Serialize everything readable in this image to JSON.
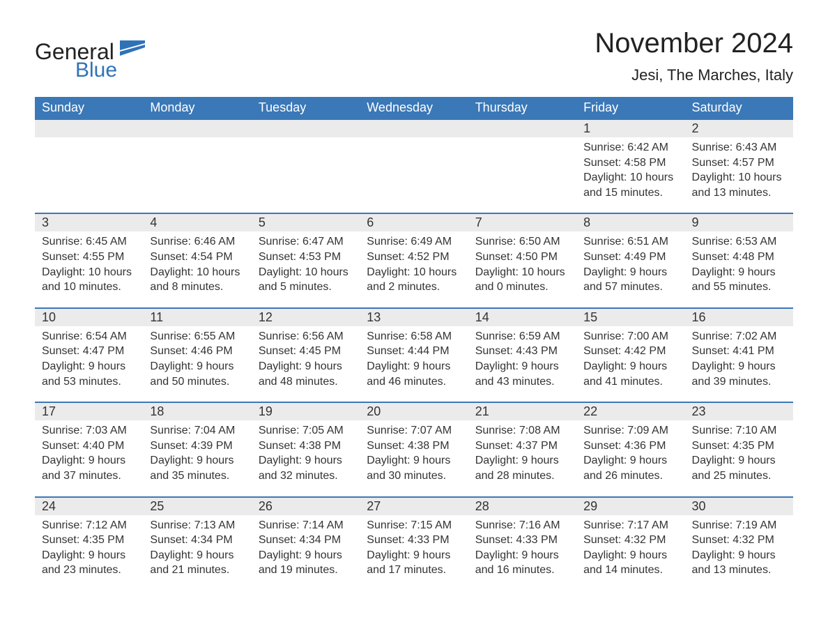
{
  "logo": {
    "general": "General",
    "blue": "Blue"
  },
  "title": "November 2024",
  "location": "Jesi, The Marches, Italy",
  "colors": {
    "header_bg": "#3b78b7",
    "header_text": "#ffffff",
    "row_border": "#3b78b7",
    "daynum_bg": "#ebebeb",
    "text": "#333333",
    "logo_blue": "#2f73b6",
    "page_bg": "#ffffff"
  },
  "weekdays": [
    "Sunday",
    "Monday",
    "Tuesday",
    "Wednesday",
    "Thursday",
    "Friday",
    "Saturday"
  ],
  "weeks": [
    [
      null,
      null,
      null,
      null,
      null,
      {
        "d": "1",
        "sr": "Sunrise: 6:42 AM",
        "ss": "Sunset: 4:58 PM",
        "dl1": "Daylight: 10 hours",
        "dl2": "and 15 minutes."
      },
      {
        "d": "2",
        "sr": "Sunrise: 6:43 AM",
        "ss": "Sunset: 4:57 PM",
        "dl1": "Daylight: 10 hours",
        "dl2": "and 13 minutes."
      }
    ],
    [
      {
        "d": "3",
        "sr": "Sunrise: 6:45 AM",
        "ss": "Sunset: 4:55 PM",
        "dl1": "Daylight: 10 hours",
        "dl2": "and 10 minutes."
      },
      {
        "d": "4",
        "sr": "Sunrise: 6:46 AM",
        "ss": "Sunset: 4:54 PM",
        "dl1": "Daylight: 10 hours",
        "dl2": "and 8 minutes."
      },
      {
        "d": "5",
        "sr": "Sunrise: 6:47 AM",
        "ss": "Sunset: 4:53 PM",
        "dl1": "Daylight: 10 hours",
        "dl2": "and 5 minutes."
      },
      {
        "d": "6",
        "sr": "Sunrise: 6:49 AM",
        "ss": "Sunset: 4:52 PM",
        "dl1": "Daylight: 10 hours",
        "dl2": "and 2 minutes."
      },
      {
        "d": "7",
        "sr": "Sunrise: 6:50 AM",
        "ss": "Sunset: 4:50 PM",
        "dl1": "Daylight: 10 hours",
        "dl2": "and 0 minutes."
      },
      {
        "d": "8",
        "sr": "Sunrise: 6:51 AM",
        "ss": "Sunset: 4:49 PM",
        "dl1": "Daylight: 9 hours",
        "dl2": "and 57 minutes."
      },
      {
        "d": "9",
        "sr": "Sunrise: 6:53 AM",
        "ss": "Sunset: 4:48 PM",
        "dl1": "Daylight: 9 hours",
        "dl2": "and 55 minutes."
      }
    ],
    [
      {
        "d": "10",
        "sr": "Sunrise: 6:54 AM",
        "ss": "Sunset: 4:47 PM",
        "dl1": "Daylight: 9 hours",
        "dl2": "and 53 minutes."
      },
      {
        "d": "11",
        "sr": "Sunrise: 6:55 AM",
        "ss": "Sunset: 4:46 PM",
        "dl1": "Daylight: 9 hours",
        "dl2": "and 50 minutes."
      },
      {
        "d": "12",
        "sr": "Sunrise: 6:56 AM",
        "ss": "Sunset: 4:45 PM",
        "dl1": "Daylight: 9 hours",
        "dl2": "and 48 minutes."
      },
      {
        "d": "13",
        "sr": "Sunrise: 6:58 AM",
        "ss": "Sunset: 4:44 PM",
        "dl1": "Daylight: 9 hours",
        "dl2": "and 46 minutes."
      },
      {
        "d": "14",
        "sr": "Sunrise: 6:59 AM",
        "ss": "Sunset: 4:43 PM",
        "dl1": "Daylight: 9 hours",
        "dl2": "and 43 minutes."
      },
      {
        "d": "15",
        "sr": "Sunrise: 7:00 AM",
        "ss": "Sunset: 4:42 PM",
        "dl1": "Daylight: 9 hours",
        "dl2": "and 41 minutes."
      },
      {
        "d": "16",
        "sr": "Sunrise: 7:02 AM",
        "ss": "Sunset: 4:41 PM",
        "dl1": "Daylight: 9 hours",
        "dl2": "and 39 minutes."
      }
    ],
    [
      {
        "d": "17",
        "sr": "Sunrise: 7:03 AM",
        "ss": "Sunset: 4:40 PM",
        "dl1": "Daylight: 9 hours",
        "dl2": "and 37 minutes."
      },
      {
        "d": "18",
        "sr": "Sunrise: 7:04 AM",
        "ss": "Sunset: 4:39 PM",
        "dl1": "Daylight: 9 hours",
        "dl2": "and 35 minutes."
      },
      {
        "d": "19",
        "sr": "Sunrise: 7:05 AM",
        "ss": "Sunset: 4:38 PM",
        "dl1": "Daylight: 9 hours",
        "dl2": "and 32 minutes."
      },
      {
        "d": "20",
        "sr": "Sunrise: 7:07 AM",
        "ss": "Sunset: 4:38 PM",
        "dl1": "Daylight: 9 hours",
        "dl2": "and 30 minutes."
      },
      {
        "d": "21",
        "sr": "Sunrise: 7:08 AM",
        "ss": "Sunset: 4:37 PM",
        "dl1": "Daylight: 9 hours",
        "dl2": "and 28 minutes."
      },
      {
        "d": "22",
        "sr": "Sunrise: 7:09 AM",
        "ss": "Sunset: 4:36 PM",
        "dl1": "Daylight: 9 hours",
        "dl2": "and 26 minutes."
      },
      {
        "d": "23",
        "sr": "Sunrise: 7:10 AM",
        "ss": "Sunset: 4:35 PM",
        "dl1": "Daylight: 9 hours",
        "dl2": "and 25 minutes."
      }
    ],
    [
      {
        "d": "24",
        "sr": "Sunrise: 7:12 AM",
        "ss": "Sunset: 4:35 PM",
        "dl1": "Daylight: 9 hours",
        "dl2": "and 23 minutes."
      },
      {
        "d": "25",
        "sr": "Sunrise: 7:13 AM",
        "ss": "Sunset: 4:34 PM",
        "dl1": "Daylight: 9 hours",
        "dl2": "and 21 minutes."
      },
      {
        "d": "26",
        "sr": "Sunrise: 7:14 AM",
        "ss": "Sunset: 4:34 PM",
        "dl1": "Daylight: 9 hours",
        "dl2": "and 19 minutes."
      },
      {
        "d": "27",
        "sr": "Sunrise: 7:15 AM",
        "ss": "Sunset: 4:33 PM",
        "dl1": "Daylight: 9 hours",
        "dl2": "and 17 minutes."
      },
      {
        "d": "28",
        "sr": "Sunrise: 7:16 AM",
        "ss": "Sunset: 4:33 PM",
        "dl1": "Daylight: 9 hours",
        "dl2": "and 16 minutes."
      },
      {
        "d": "29",
        "sr": "Sunrise: 7:17 AM",
        "ss": "Sunset: 4:32 PM",
        "dl1": "Daylight: 9 hours",
        "dl2": "and 14 minutes."
      },
      {
        "d": "30",
        "sr": "Sunrise: 7:19 AM",
        "ss": "Sunset: 4:32 PM",
        "dl1": "Daylight: 9 hours",
        "dl2": "and 13 minutes."
      }
    ]
  ]
}
